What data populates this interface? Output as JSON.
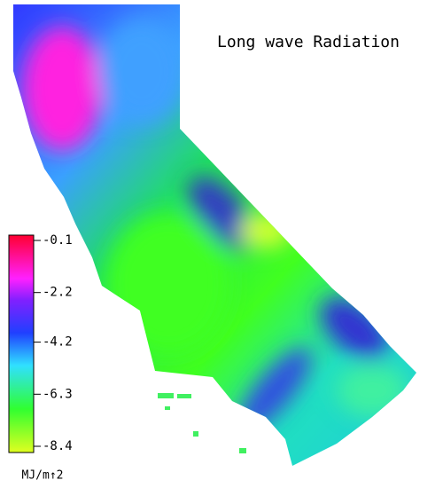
{
  "title": "Long wave Radiation",
  "colorbar": {
    "ticks": [
      -0.1,
      -2.2,
      -4.2,
      -6.3,
      -8.4
    ],
    "unit": "MJ/m↑2"
  }
}
